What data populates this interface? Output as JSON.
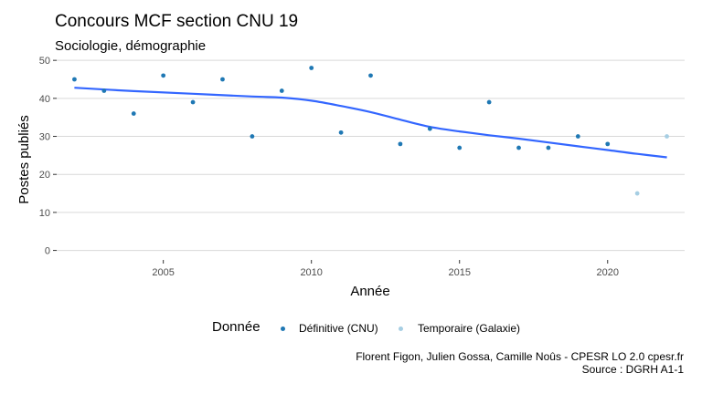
{
  "title": "Concours MCF section CNU 19",
  "subtitle": "Sociologie, démographie",
  "legend": {
    "title": "Donnée",
    "items": [
      {
        "label": "Définitive (CNU)",
        "color": "#1f78b4"
      },
      {
        "label": "Temporaire (Galaxie)",
        "color": "#a6cee3"
      }
    ]
  },
  "caption": {
    "line1": "Florent Figon, Julien Gossa, Camille Noûs - CPESR LO 2.0 cpesr.fr",
    "line2": "Source : DGRH A1-1"
  },
  "chart_data": {
    "type": "scatter",
    "title": "Concours MCF section CNU 19",
    "subtitle": "Sociologie, démographie",
    "xlabel": "Année",
    "ylabel": "Postes publiés",
    "xlim": [
      2001.4,
      2022.6
    ],
    "ylim": [
      -2.5,
      51
    ],
    "x_ticks": [
      2005,
      2010,
      2015,
      2020
    ],
    "y_ticks": [
      0,
      10,
      20,
      30,
      40,
      50
    ],
    "grid": "horizontal",
    "legend_position": "bottom",
    "series": [
      {
        "name": "Définitive (CNU)",
        "color": "#1f78b4",
        "x": [
          2002,
          2003,
          2004,
          2005,
          2006,
          2007,
          2008,
          2009,
          2010,
          2011,
          2012,
          2013,
          2014,
          2015,
          2016,
          2017,
          2018,
          2019,
          2020
        ],
        "y": [
          45,
          42,
          36,
          46,
          39,
          45,
          30,
          42,
          48,
          31,
          46,
          28,
          32,
          27,
          39,
          27,
          27,
          30,
          28
        ]
      },
      {
        "name": "Temporaire (Galaxie)",
        "color": "#a6cee3",
        "x": [
          2021,
          2022
        ],
        "y": [
          15,
          30
        ]
      }
    ],
    "trend": {
      "color": "#3366ff",
      "x": [
        2002,
        2004,
        2006,
        2008,
        2009,
        2010,
        2011,
        2012,
        2013,
        2014,
        2015,
        2016,
        2017,
        2018,
        2019,
        2020,
        2021,
        2022
      ],
      "y": [
        42.8,
        41.9,
        41.2,
        40.5,
        40.2,
        39.4,
        38.0,
        36.4,
        34.4,
        32.5,
        31.3,
        30.3,
        29.4,
        28.4,
        27.4,
        26.4,
        25.4,
        24.5
      ]
    }
  }
}
